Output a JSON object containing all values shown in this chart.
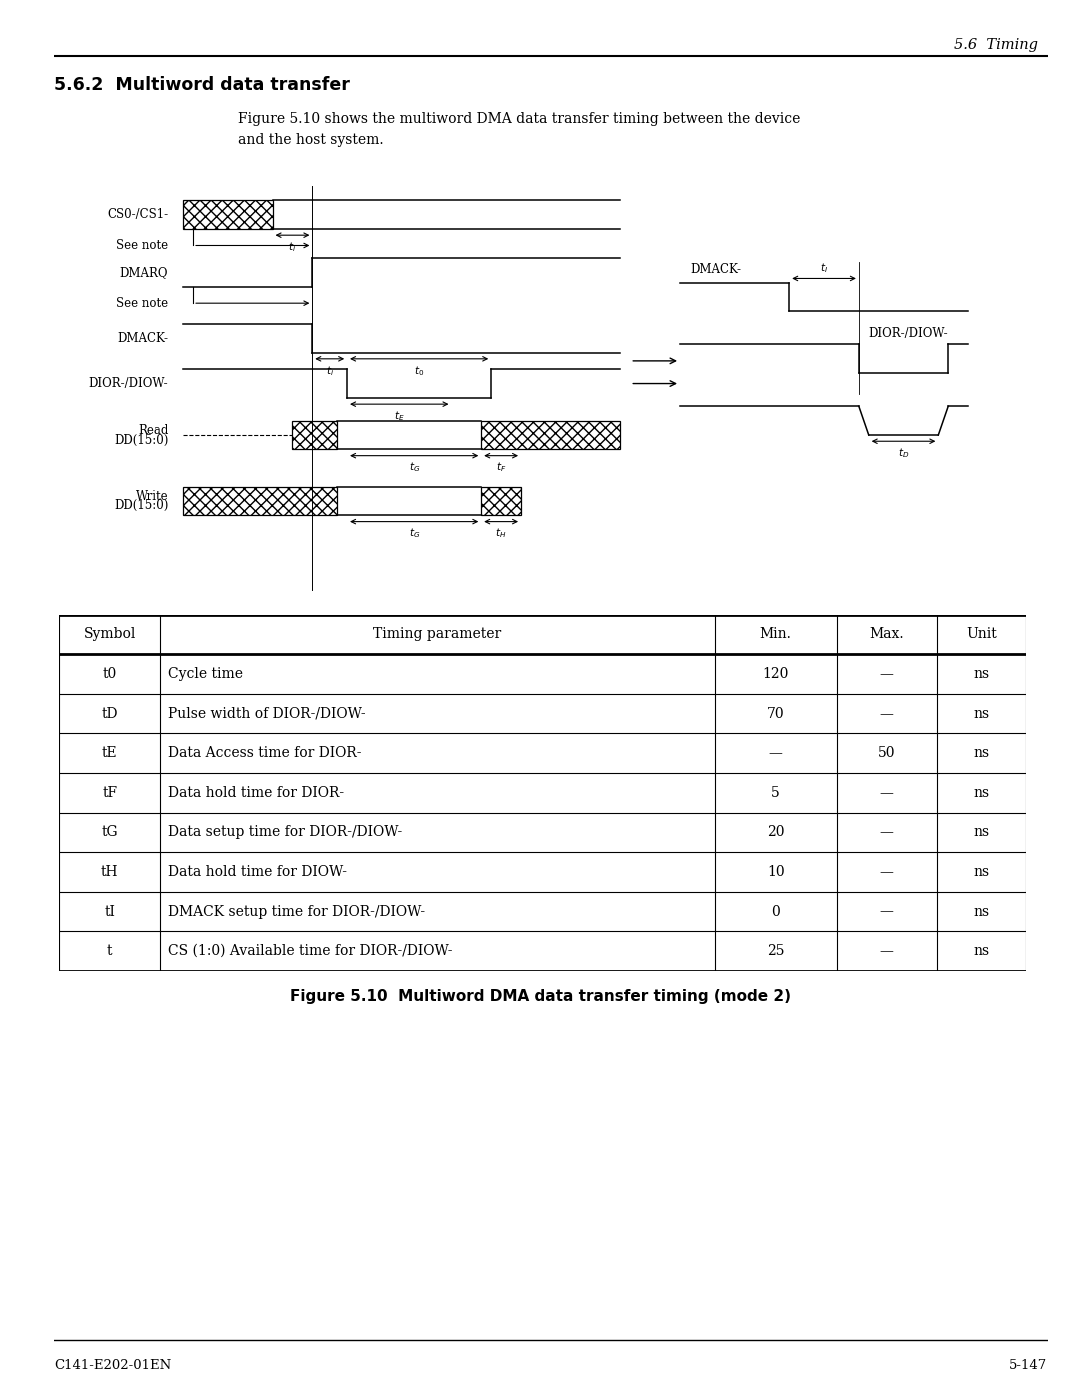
{
  "title_right": "5.6  Timing",
  "section_title": "5.6.2  Multiword data transfer",
  "body_text": "Figure 5.10 shows the multiword DMA data transfer timing between the device\nand the host system.",
  "figure_caption": "Figure 5.10  Multiword DMA data transfer timing (mode 2)",
  "footer_left": "C141-E202-01EN",
  "footer_right": "5-147",
  "table_headers": [
    "Symbol",
    "Timing parameter",
    "Min.",
    "Max.",
    "Unit"
  ],
  "table_rows": [
    [
      "t0",
      "Cycle time",
      "120",
      "—",
      "ns"
    ],
    [
      "tD",
      "Pulse width of DIOR-/DIOW-",
      "70",
      "—",
      "ns"
    ],
    [
      "tE",
      "Data Access time for DIOR-",
      "—",
      "50",
      "ns"
    ],
    [
      "tF",
      "Data hold time for DIOR-",
      "5",
      "—",
      "ns"
    ],
    [
      "tG",
      "Data setup time for DIOR-/DIOW-",
      "20",
      "—",
      "ns"
    ],
    [
      "tH",
      "Data hold time for DIOW-",
      "10",
      "—",
      "ns"
    ],
    [
      "tI",
      "DMACK setup time for DIOR-/DIOW-",
      "0",
      "—",
      "ns"
    ],
    [
      "t",
      "CS (1:0) Available time for DIOR-/DIOW-",
      "25",
      "—",
      "ns"
    ]
  ],
  "bg_color": "#ffffff",
  "text_color": "#000000",
  "line_color": "#000000"
}
